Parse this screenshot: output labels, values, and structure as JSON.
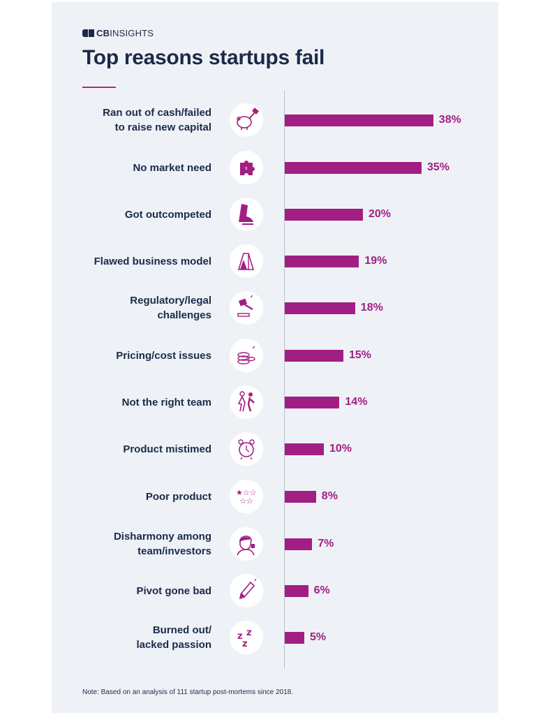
{
  "brand": {
    "logo_bold": "CB",
    "logo_rest": "INSIGHTS"
  },
  "header": {
    "title": "Top reasons startups fail"
  },
  "colors": {
    "bar": "#a11f82",
    "text": "#1c2a48",
    "accent": "#b5267e",
    "background": "#eef2f7"
  },
  "chart_data": {
    "type": "bar",
    "orientation": "horizontal",
    "title": "Top reasons startups fail",
    "categories": [
      "Ran out of cash/failed to raise new capital",
      "No market need",
      "Got outcompeted",
      "Flawed business model",
      "Regulatory/legal challenges",
      "Pricing/cost issues",
      "Not the right team",
      "Product mistimed",
      "Poor product",
      "Disharmony among team/investors",
      "Pivot gone bad",
      "Burned out/ lacked passion"
    ],
    "label_lines": [
      [
        "Ran out of cash/failed",
        "to raise new capital"
      ],
      [
        "No market need"
      ],
      [
        "Got outcompeted"
      ],
      [
        "Flawed business model"
      ],
      [
        "Regulatory/legal",
        "challenges"
      ],
      [
        "Pricing/cost issues"
      ],
      [
        "Not the right team"
      ],
      [
        "Product mistimed"
      ],
      [
        "Poor product"
      ],
      [
        "Disharmony among",
        "team/investors"
      ],
      [
        "Pivot gone bad"
      ],
      [
        "Burned out/",
        "lacked passion"
      ]
    ],
    "values": [
      38,
      35,
      20,
      19,
      18,
      15,
      14,
      10,
      8,
      7,
      6,
      5
    ],
    "value_labels": [
      "38%",
      "35%",
      "20%",
      "19%",
      "18%",
      "15%",
      "14%",
      "10%",
      "8%",
      "7%",
      "6%",
      "5%"
    ],
    "icons": [
      "piggy-bank-hammer-icon",
      "puzzle-piece-icon",
      "running-shoe-icon",
      "card-house-icon",
      "gavel-icon",
      "coin-stack-icon",
      "team-people-icon",
      "alarm-clock-icon",
      "star-rating-icon",
      "frustrated-person-icon",
      "pen-icon",
      "sleep-zzz-icon"
    ],
    "xlim": [
      0,
      40
    ],
    "grid": false,
    "legend": "none"
  },
  "footer": {
    "note": "Note: Based on an analysis of 111 startup post-mortems since 2018."
  }
}
